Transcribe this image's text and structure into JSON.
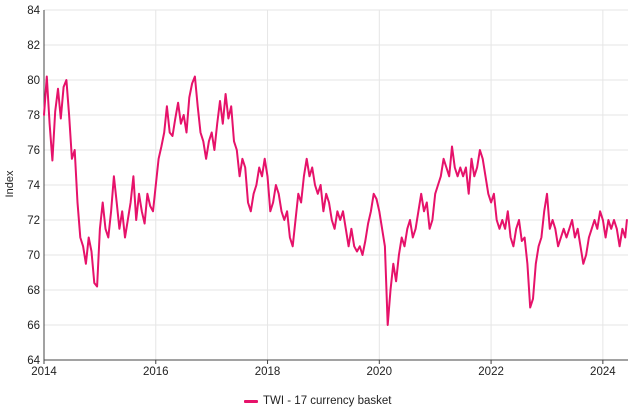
{
  "chart_data": {
    "type": "line",
    "ylabel": "Index",
    "xlabel": "",
    "ylim": [
      64,
      84
    ],
    "xlim": [
      2014.0,
      2024.45
    ],
    "grid": true,
    "legend_position": "bottom-center",
    "y_ticks": [
      64,
      66,
      68,
      70,
      72,
      74,
      76,
      78,
      80,
      82,
      84
    ],
    "x_ticks": [
      2014,
      2016,
      2018,
      2020,
      2022,
      2024
    ],
    "colors": {
      "series": "#e6126a",
      "grid": "#e6e6e6",
      "axis": "#444444"
    },
    "series": [
      {
        "name": "TWI - 17 currency basket",
        "x": [
          2014.0,
          2014.05,
          2014.1,
          2014.15,
          2014.2,
          2014.25,
          2014.3,
          2014.35,
          2014.4,
          2014.45,
          2014.5,
          2014.55,
          2014.6,
          2014.65,
          2014.7,
          2014.75,
          2014.8,
          2014.85,
          2014.9,
          2014.95,
          2015.0,
          2015.05,
          2015.1,
          2015.15,
          2015.2,
          2015.25,
          2015.3,
          2015.35,
          2015.4,
          2015.45,
          2015.5,
          2015.55,
          2015.6,
          2015.65,
          2015.7,
          2015.75,
          2015.8,
          2015.85,
          2015.9,
          2015.95,
          2016.0,
          2016.05,
          2016.1,
          2016.15,
          2016.2,
          2016.25,
          2016.3,
          2016.35,
          2016.4,
          2016.45,
          2016.5,
          2016.55,
          2016.6,
          2016.65,
          2016.7,
          2016.75,
          2016.8,
          2016.85,
          2016.9,
          2016.95,
          2017.0,
          2017.05,
          2017.1,
          2017.15,
          2017.2,
          2017.25,
          2017.3,
          2017.35,
          2017.4,
          2017.45,
          2017.5,
          2017.55,
          2017.6,
          2017.65,
          2017.7,
          2017.75,
          2017.8,
          2017.85,
          2017.9,
          2017.95,
          2018.0,
          2018.05,
          2018.1,
          2018.15,
          2018.2,
          2018.25,
          2018.3,
          2018.35,
          2018.4,
          2018.45,
          2018.5,
          2018.55,
          2018.6,
          2018.65,
          2018.7,
          2018.75,
          2018.8,
          2018.85,
          2018.9,
          2018.95,
          2019.0,
          2019.05,
          2019.1,
          2019.15,
          2019.2,
          2019.25,
          2019.3,
          2019.35,
          2019.4,
          2019.45,
          2019.5,
          2019.55,
          2019.6,
          2019.65,
          2019.7,
          2019.75,
          2019.8,
          2019.85,
          2019.9,
          2019.95,
          2020.0,
          2020.05,
          2020.1,
          2020.15,
          2020.2,
          2020.25,
          2020.3,
          2020.35,
          2020.4,
          2020.45,
          2020.5,
          2020.55,
          2020.6,
          2020.65,
          2020.7,
          2020.75,
          2020.8,
          2020.85,
          2020.9,
          2020.95,
          2021.0,
          2021.05,
          2021.1,
          2021.15,
          2021.2,
          2021.25,
          2021.3,
          2021.35,
          2021.4,
          2021.45,
          2021.5,
          2021.55,
          2021.6,
          2021.65,
          2021.7,
          2021.75,
          2021.8,
          2021.85,
          2021.9,
          2021.95,
          2022.0,
          2022.05,
          2022.1,
          2022.15,
          2022.2,
          2022.25,
          2022.3,
          2022.35,
          2022.4,
          2022.45,
          2022.5,
          2022.55,
          2022.6,
          2022.65,
          2022.7,
          2022.75,
          2022.8,
          2022.85,
          2022.9,
          2022.95,
          2023.0,
          2023.05,
          2023.1,
          2023.15,
          2023.2,
          2023.25,
          2023.3,
          2023.35,
          2023.4,
          2023.45,
          2023.5,
          2023.55,
          2023.6,
          2023.65,
          2023.7,
          2023.75,
          2023.8,
          2023.85,
          2023.9,
          2023.95,
          2024.0,
          2024.05,
          2024.1,
          2024.15,
          2024.2,
          2024.25,
          2024.3,
          2024.35,
          2024.4,
          2024.43
        ],
        "y": [
          78.0,
          80.2,
          77.5,
          75.4,
          78.2,
          79.5,
          77.8,
          79.6,
          80.0,
          78.0,
          75.5,
          76.0,
          73.0,
          71.0,
          70.5,
          69.5,
          71.0,
          70.2,
          68.4,
          68.2,
          71.5,
          73.0,
          71.5,
          71.0,
          72.5,
          74.5,
          73.0,
          71.5,
          72.5,
          71.0,
          72.0,
          73.0,
          74.5,
          72.0,
          73.5,
          72.5,
          71.8,
          73.5,
          72.8,
          72.5,
          74.0,
          75.5,
          76.2,
          77.0,
          78.5,
          77.0,
          76.8,
          77.8,
          78.7,
          77.5,
          78.0,
          77.0,
          79.0,
          79.8,
          80.2,
          78.5,
          77.0,
          76.5,
          75.5,
          76.5,
          77.0,
          76.0,
          77.5,
          78.8,
          77.5,
          79.2,
          77.8,
          78.5,
          76.5,
          76.0,
          74.5,
          75.5,
          75.0,
          73.0,
          72.5,
          73.5,
          74.0,
          75.0,
          74.5,
          75.5,
          74.5,
          72.5,
          73.0,
          74.0,
          73.5,
          72.5,
          72.0,
          72.5,
          71.0,
          70.5,
          72.0,
          73.5,
          73.0,
          74.5,
          75.5,
          74.5,
          75.0,
          74.0,
          73.5,
          74.0,
          72.5,
          73.5,
          73.0,
          72.0,
          71.5,
          72.5,
          72.0,
          72.5,
          71.5,
          70.5,
          71.5,
          70.5,
          70.2,
          70.5,
          70.0,
          70.8,
          71.8,
          72.5,
          73.5,
          73.2,
          72.5,
          71.5,
          70.5,
          66.0,
          68.0,
          69.5,
          68.5,
          70.0,
          71.0,
          70.5,
          71.5,
          72.0,
          71.0,
          71.5,
          72.5,
          73.5,
          72.5,
          73.0,
          71.5,
          72.0,
          73.5,
          74.0,
          74.5,
          75.5,
          75.0,
          74.5,
          76.2,
          75.0,
          74.5,
          75.0,
          74.5,
          75.0,
          73.5,
          75.5,
          74.5,
          75.0,
          76.0,
          75.5,
          74.5,
          73.5,
          73.0,
          73.5,
          72.0,
          71.5,
          72.0,
          71.5,
          72.5,
          71.0,
          70.5,
          71.5,
          72.0,
          70.8,
          71.0,
          69.5,
          67.0,
          67.5,
          69.5,
          70.5,
          71.0,
          72.5,
          73.5,
          71.5,
          72.0,
          71.5,
          70.5,
          71.0,
          71.5,
          71.0,
          71.5,
          72.0,
          71.0,
          71.5,
          70.5,
          69.5,
          70.0,
          71.0,
          71.5,
          72.0,
          71.5,
          72.5,
          72.0,
          71.0,
          72.0,
          71.5,
          72.0,
          71.5,
          70.5,
          71.5,
          71.0,
          72.0
        ]
      }
    ]
  }
}
